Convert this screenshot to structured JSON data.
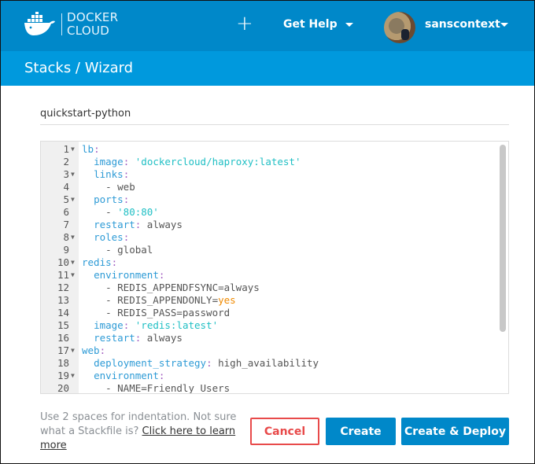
{
  "header": {
    "logo_line1": "DOCKER",
    "logo_line2": "CLOUD",
    "add_label": "+",
    "help_label": "Get Help",
    "username": "sanscontext"
  },
  "breadcrumb": "Stacks / Wizard",
  "stack_name": "quickstart-python",
  "editor": {
    "lines": [
      {
        "n": "1",
        "fold": true,
        "tokens": [
          [
            "k",
            "lb"
          ],
          [
            "p",
            ":"
          ]
        ]
      },
      {
        "n": "2",
        "tokens": [
          [
            "v",
            "  "
          ],
          [
            "k",
            "image"
          ],
          [
            "p",
            ":"
          ],
          [
            "v",
            " "
          ],
          [
            "s",
            "'dockercloud/haproxy:latest'"
          ]
        ]
      },
      {
        "n": "3",
        "fold": true,
        "tokens": [
          [
            "v",
            "  "
          ],
          [
            "k",
            "links"
          ],
          [
            "p",
            ":"
          ]
        ]
      },
      {
        "n": "4",
        "tokens": [
          [
            "v",
            "    - web"
          ]
        ]
      },
      {
        "n": "5",
        "fold": true,
        "tokens": [
          [
            "v",
            "  "
          ],
          [
            "k",
            "ports"
          ],
          [
            "p",
            ":"
          ]
        ]
      },
      {
        "n": "6",
        "tokens": [
          [
            "v",
            "    - "
          ],
          [
            "s",
            "'80:80'"
          ]
        ]
      },
      {
        "n": "7",
        "tokens": [
          [
            "v",
            "  "
          ],
          [
            "k",
            "restart"
          ],
          [
            "p",
            ":"
          ],
          [
            "v",
            " always"
          ]
        ]
      },
      {
        "n": "8",
        "fold": true,
        "tokens": [
          [
            "v",
            "  "
          ],
          [
            "k",
            "roles"
          ],
          [
            "p",
            ":"
          ]
        ]
      },
      {
        "n": "9",
        "tokens": [
          [
            "v",
            "    - global"
          ]
        ]
      },
      {
        "n": "10",
        "fold": true,
        "tokens": [
          [
            "k",
            "redis"
          ],
          [
            "p",
            ":"
          ]
        ]
      },
      {
        "n": "11",
        "fold": true,
        "tokens": [
          [
            "v",
            "  "
          ],
          [
            "k",
            "environment"
          ],
          [
            "p",
            ":"
          ]
        ]
      },
      {
        "n": "12",
        "tokens": [
          [
            "v",
            "    - REDIS_APPENDFSYNC=always"
          ]
        ]
      },
      {
        "n": "13",
        "tokens": [
          [
            "v",
            "    - REDIS_APPENDONLY="
          ],
          [
            "o",
            "yes"
          ]
        ]
      },
      {
        "n": "14",
        "tokens": [
          [
            "v",
            "    - REDIS_PASS=password"
          ]
        ]
      },
      {
        "n": "15",
        "tokens": [
          [
            "v",
            "  "
          ],
          [
            "k",
            "image"
          ],
          [
            "p",
            ":"
          ],
          [
            "v",
            " "
          ],
          [
            "s",
            "'redis:latest'"
          ]
        ]
      },
      {
        "n": "16",
        "tokens": [
          [
            "v",
            "  "
          ],
          [
            "k",
            "restart"
          ],
          [
            "p",
            ":"
          ],
          [
            "v",
            " always"
          ]
        ]
      },
      {
        "n": "17",
        "fold": true,
        "tokens": [
          [
            "k",
            "web"
          ],
          [
            "p",
            ":"
          ]
        ]
      },
      {
        "n": "18",
        "tokens": [
          [
            "v",
            "  "
          ],
          [
            "k",
            "deployment_strategy"
          ],
          [
            "p",
            ":"
          ],
          [
            "v",
            " high_availability"
          ]
        ]
      },
      {
        "n": "19",
        "fold": true,
        "tokens": [
          [
            "v",
            "  "
          ],
          [
            "k",
            "environment"
          ],
          [
            "p",
            ":"
          ]
        ]
      },
      {
        "n": "20",
        "tokens": [
          [
            "v",
            "    - NAME=Friendly Users"
          ]
        ]
      }
    ]
  },
  "footer": {
    "hint": "Use 2 spaces for indentation. Not sure what a Stackfile is? ",
    "hint_link": "Click here to learn more",
    "cancel_label": "Cancel",
    "create_label": "Create",
    "deploy_label": "Create & Deploy"
  },
  "colors": {
    "header": "#0088c9",
    "subheader": "#0099dd",
    "cancel": "#e84a4a",
    "primary": "#0088c9"
  }
}
